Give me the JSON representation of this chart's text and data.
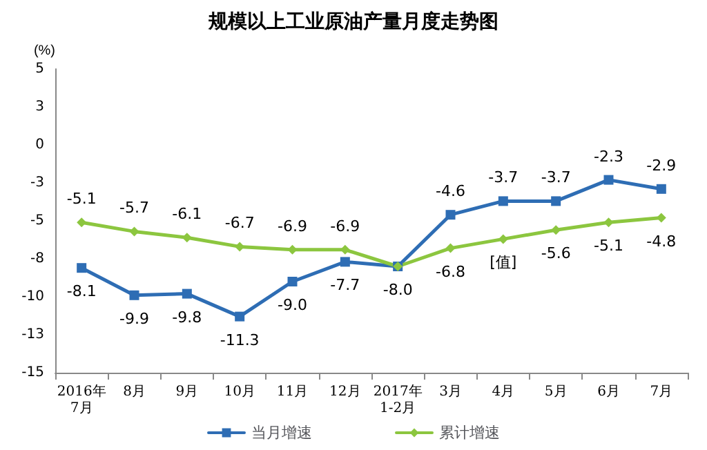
{
  "chart_data": {
    "type": "line",
    "title": "规模以上工业原油产量月度走势图",
    "ylabel": "(%)",
    "categories": [
      "2016年\n7月",
      "8月",
      "9月",
      "10月",
      "11月",
      "12月",
      "2017年\n1-2月",
      "3月",
      "4月",
      "5月",
      "6月",
      "7月"
    ],
    "series": [
      {
        "name": "当月增速",
        "color": "#2e6db4",
        "marker": "square",
        "values": [
          -8.1,
          -9.9,
          -9.8,
          -11.3,
          -9.0,
          -7.7,
          -8.0,
          -4.6,
          -3.7,
          -3.7,
          -2.3,
          -2.9
        ],
        "value_labels": [
          "-8.1",
          "-9.9",
          "-9.8",
          "-11.3",
          "-9.0",
          "-7.7",
          "-8.0",
          "-4.6",
          "-3.7",
          "-3.7",
          "-2.3",
          "-2.9"
        ]
      },
      {
        "name": "累计增速",
        "color": "#8cc63f",
        "marker": "diamond",
        "values": [
          -5.1,
          -5.7,
          -6.1,
          -6.7,
          -6.9,
          -6.9,
          -8.0,
          -6.8,
          -6.2,
          -5.6,
          -5.1,
          -4.8
        ],
        "value_labels": [
          "-5.1",
          "-5.7",
          "-6.1",
          "-6.7",
          "-6.9",
          "-6.9",
          null,
          "-6.8",
          "[值]",
          "-5.6",
          "-5.1",
          "-4.8"
        ]
      }
    ],
    "ylim": [
      -15,
      5
    ],
    "yticks": [
      -15,
      {
        "value": -12.5,
        "label": "-13"
      },
      -10,
      {
        "value": -7.5,
        "label": "-8"
      },
      -5,
      {
        "value": -2.5,
        "label": "-3"
      },
      0,
      {
        "value": 2.5,
        "label": "3"
      },
      5
    ],
    "grid": false,
    "legend": "bottom",
    "line_style": "solid"
  }
}
